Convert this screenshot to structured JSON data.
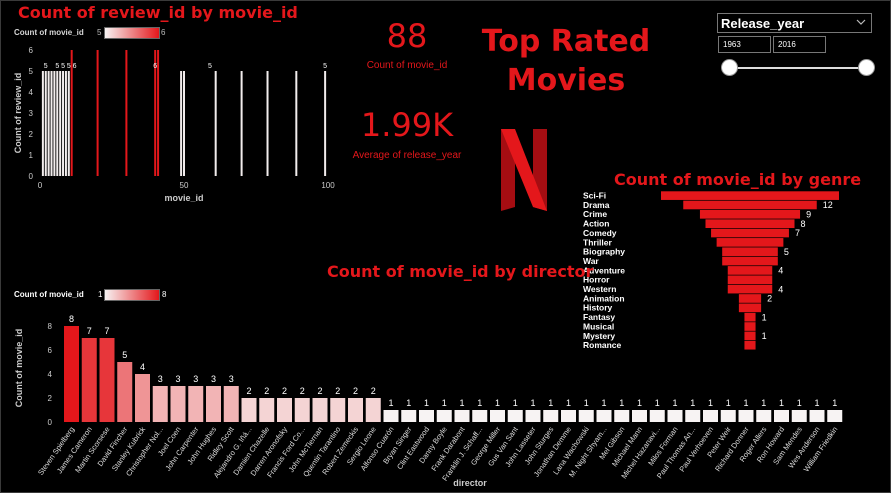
{
  "dashboard_title": [
    "Top Rated",
    "Movies"
  ],
  "kpis": [
    {
      "value": "88",
      "label": "Count of movie_id"
    },
    {
      "value": "1.99K",
      "label": "Average of release_year"
    }
  ],
  "filter": {
    "field": "Release_year",
    "from": "1963",
    "to": "2016"
  },
  "colors": {
    "accent": "#e4171b",
    "light": "#f7f3f3",
    "background": "#000000"
  },
  "icons": {
    "logo": "netflix-logo-icon",
    "dropdown": "chevron-down-icon"
  },
  "chart_data": [
    {
      "id": "review_chart",
      "type": "bar",
      "title": "Count of review_id by movie_id",
      "xlabel": "movie_id",
      "ylabel": "Count of review_id",
      "legend": {
        "label": "Count of movie_id",
        "min": "5",
        "max": "6"
      },
      "xlim": [
        0,
        100
      ],
      "ylim": [
        0,
        6
      ],
      "x_ticks": [
        "0",
        "50",
        "100"
      ],
      "y_ticks": [
        "0",
        "1",
        "2",
        "3",
        "4",
        "5",
        "6"
      ],
      "bars": [
        {
          "x": 1,
          "y": 5
        },
        {
          "x": 2,
          "y": 5
        },
        {
          "x": 3,
          "y": 5
        },
        {
          "x": 4,
          "y": 5
        },
        {
          "x": 5,
          "y": 5
        },
        {
          "x": 6,
          "y": 5
        },
        {
          "x": 7,
          "y": 5
        },
        {
          "x": 8,
          "y": 5
        },
        {
          "x": 9,
          "y": 5
        },
        {
          "x": 10,
          "y": 5
        },
        {
          "x": 11,
          "y": 6
        },
        {
          "x": 20,
          "y": 6
        },
        {
          "x": 30,
          "y": 6
        },
        {
          "x": 40,
          "y": 6
        },
        {
          "x": 41,
          "y": 6
        },
        {
          "x": 49,
          "y": 5
        },
        {
          "x": 50,
          "y": 5
        },
        {
          "x": 61,
          "y": 5
        },
        {
          "x": 70,
          "y": 5
        },
        {
          "x": 79,
          "y": 5
        },
        {
          "x": 89,
          "y": 5
        },
        {
          "x": 99,
          "y": 5
        }
      ],
      "data_labels": [
        {
          "x": 2,
          "text": "5"
        },
        {
          "x": 6,
          "text": "5"
        },
        {
          "x": 8,
          "text": "5"
        },
        {
          "x": 10,
          "text": "5"
        },
        {
          "x": 12,
          "text": "6"
        },
        {
          "x": 40,
          "text": "6"
        },
        {
          "x": 59,
          "text": "5"
        },
        {
          "x": 99,
          "text": "5"
        }
      ]
    },
    {
      "id": "genre_chart",
      "type": "bar",
      "title": "Count of movie_id by genre",
      "categories": [
        "Sci-Fi",
        "Drama",
        "Crime",
        "Action",
        "Comedy",
        "Thriller",
        "Biography",
        "War",
        "Adventure",
        "Horror",
        "Western",
        "Animation",
        "History",
        "Fantasy",
        "Musical",
        "Mystery",
        "Romance"
      ],
      "values": [
        16,
        12,
        9,
        8,
        7,
        6,
        5,
        5,
        4,
        4,
        4,
        2,
        2,
        1,
        1,
        1,
        1
      ],
      "data_labels": [
        "",
        "12",
        "9",
        "8",
        "7",
        "",
        "5",
        "",
        "4",
        "",
        "4",
        "2",
        "",
        "1",
        "",
        "1",
        ""
      ]
    },
    {
      "id": "director_chart",
      "type": "bar",
      "title": "Count of movie_id by director",
      "xlabel": "director",
      "ylabel": "Count of movie_id",
      "legend": {
        "label": "Count of movie_id",
        "min": "1",
        "max": "8"
      },
      "ylim": [
        0,
        8
      ],
      "y_ticks": [
        "0",
        "2",
        "4",
        "6",
        "8"
      ],
      "categories": [
        "Steven Spielberg",
        "James Cameron",
        "Martin Scorsese",
        "David Fincher",
        "Stanley Kubrick",
        "Christopher Nol...",
        "Joel Coen",
        "John Carpenter",
        "John Hughes",
        "Ridley Scott",
        "Alejandro G. Iñá...",
        "Damien Chazelle",
        "Darren Aronofsky",
        "Francis Ford Co...",
        "John McTiernan",
        "Quentin Tarantino",
        "Robert Zemeckis",
        "Sergio Leone",
        "Alfonso Cuarón",
        "Bryan Singer",
        "Clint Eastwood",
        "Danny Boyle",
        "Frank Darabont",
        "Franklin J. Schaff...",
        "George Miller",
        "Gus Van Sant",
        "John Lasseter",
        "John Sturges",
        "Jonathan Demme",
        "Lana Wachowski",
        "M. Night Shyam...",
        "Mel Gibson",
        "Michael Mann",
        "Michel Hazanavi...",
        "Milos Forman",
        "Paul Thomas An...",
        "Paul Verhoeven",
        "Peter Weir",
        "Richard Donner",
        "Roger Allers",
        "Ron Howard",
        "Sam Mendes",
        "Wes Anderson",
        "William Friedkin"
      ],
      "values": [
        8,
        7,
        7,
        5,
        4,
        3,
        3,
        3,
        3,
        3,
        2,
        2,
        2,
        2,
        2,
        2,
        2,
        2,
        1,
        1,
        1,
        1,
        1,
        1,
        1,
        1,
        1,
        1,
        1,
        1,
        1,
        1,
        1,
        1,
        1,
        1,
        1,
        1,
        1,
        1,
        1,
        1,
        1,
        1
      ]
    }
  ]
}
